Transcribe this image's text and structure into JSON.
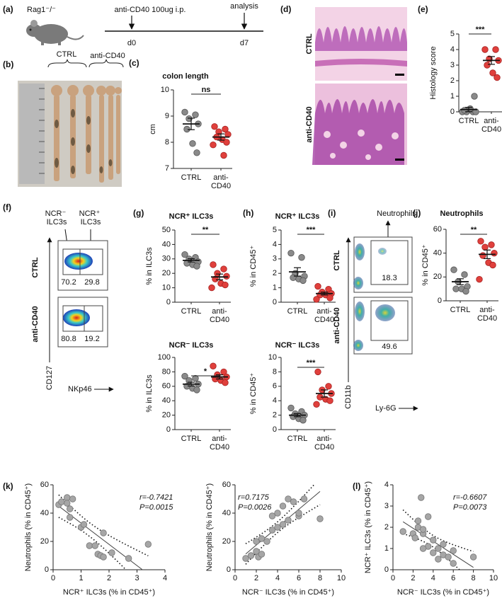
{
  "panel_labels": [
    "(a)",
    "(b)",
    "(c)",
    "(d)",
    "(e)",
    "(f)",
    "(g)",
    "(h)",
    "(i)",
    "(j)",
    "(k)",
    "(l)"
  ],
  "schematic": {
    "mouse": "Rag1⁻/⁻",
    "treatment": "anti-CD40 100ug i.p.",
    "analysis": "analysis",
    "start": "d0",
    "end": "d7"
  },
  "photo": {
    "groups": [
      "CTRL",
      "anti-CD40"
    ]
  },
  "histology": {
    "rows": [
      "CTRL",
      "anti-CD40"
    ]
  },
  "ilc3_flow": {
    "gates": [
      "NCR⁻ ILC3s",
      "NCR⁺ ILC3s"
    ],
    "rows": [
      "CTRL",
      "anti-CD40"
    ],
    "y_axis": "CD127",
    "x_axis": "NKp46",
    "percentages": [
      [
        70.2,
        29.8
      ],
      [
        80.8,
        19.2
      ]
    ]
  },
  "neutrophil_flow": {
    "gate": "Neutrophils",
    "rows": [
      "CTRL",
      "anti-CD40"
    ],
    "y_axis": "CD11b",
    "x_axis": "Ly-6G",
    "percentages": [
      18.3,
      49.6
    ]
  },
  "chart_data": [
    {
      "type": "dot",
      "title": "colon length",
      "y_label": "cm",
      "categories": [
        "CTRL",
        "anti-CD40"
      ],
      "colors": [
        "#8a8a8a",
        "#e0403c"
      ],
      "values": [
        [
          9.15,
          9.05,
          8.9,
          8.7,
          8.5,
          7.95,
          7.6
        ],
        [
          8.6,
          8.5,
          8.4,
          8.3,
          8.2,
          8.1,
          8.0,
          7.9,
          7.5
        ]
      ],
      "means": [
        8.7,
        8.2
      ],
      "errors": [
        0.22,
        0.12
      ],
      "ylim": [
        7,
        10
      ],
      "yticks": [
        7,
        8,
        9,
        10
      ],
      "significance": "ns"
    },
    {
      "type": "dot",
      "y_label": "Histology score",
      "categories": [
        "CTRL",
        "anti-CD40"
      ],
      "colors": [
        "#8a8a8a",
        "#e0403c"
      ],
      "values": [
        [
          0,
          0,
          0,
          0,
          0.1,
          0.2,
          1.0
        ],
        [
          4.0,
          4.0,
          3.4,
          3.3,
          3.0,
          2.5,
          2.2
        ]
      ],
      "means": [
        0.15,
        3.3
      ],
      "errors": [
        0.14,
        0.25
      ],
      "ylim": [
        0,
        5
      ],
      "yticks": [
        0,
        1,
        2,
        3,
        4,
        5
      ],
      "significance": "***"
    },
    {
      "type": "dot",
      "title": "NCR⁺ ILC3s",
      "y_label": "% in ILC3s",
      "categories": [
        "CTRL",
        "anti-CD40"
      ],
      "colors": [
        "#8a8a8a",
        "#e0403c"
      ],
      "values": [
        [
          33,
          31,
          30,
          28,
          27,
          26,
          25
        ],
        [
          26,
          23,
          20,
          18,
          16,
          13,
          12,
          10
        ]
      ],
      "means": [
        29,
        17.5
      ],
      "errors": [
        1.1,
        2
      ],
      "ylim": [
        0,
        50
      ],
      "yticks": [
        0,
        10,
        20,
        30,
        40,
        50
      ],
      "significance": "**"
    },
    {
      "type": "dot",
      "title": "NCR⁻ ILC3s",
      "y_label": "% in ILC3s",
      "categories": [
        "CTRL",
        "anti-CD40"
      ],
      "colors": [
        "#8a8a8a",
        "#e0403c"
      ],
      "values": [
        [
          74,
          71,
          68,
          63,
          60,
          57,
          55
        ],
        [
          88,
          80,
          76,
          73,
          70,
          68,
          65
        ]
      ],
      "means": [
        63,
        73
      ],
      "errors": [
        2.6,
        2.9
      ],
      "ylim": [
        0,
        100
      ],
      "yticks": [
        0,
        20,
        40,
        60,
        80,
        100
      ],
      "significance": "*"
    },
    {
      "type": "dot",
      "title": "NCR⁺ ILC3s",
      "y_label": "% in CD45⁺",
      "categories": [
        "CTRL",
        "anti-CD40"
      ],
      "colors": [
        "#8a8a8a",
        "#e0403c"
      ],
      "values": [
        [
          3.4,
          3.1,
          2.0,
          1.8,
          1.7,
          1.6,
          1.5
        ],
        [
          1.1,
          0.9,
          0.7,
          0.6,
          0.5,
          0.5,
          0.3,
          0.2
        ]
      ],
      "means": [
        2.1,
        0.6
      ],
      "errors": [
        0.29,
        0.1
      ],
      "ylim": [
        0,
        5
      ],
      "yticks": [
        0,
        1,
        2,
        3,
        4,
        5
      ],
      "significance": "***"
    },
    {
      "type": "dot",
      "title": "NCR⁻ ILC3s",
      "y_label": "% in CD45⁺",
      "categories": [
        "CTRL",
        "anti-CD40"
      ],
      "colors": [
        "#8a8a8a",
        "#e0403c"
      ],
      "values": [
        [
          3.0,
          2.5,
          2.2,
          2.0,
          1.8,
          1.5,
          1.3
        ],
        [
          8.0,
          6.0,
          5.5,
          5.0,
          4.5,
          4.2,
          4.0,
          3.5
        ]
      ],
      "means": [
        2.0,
        5.0
      ],
      "errors": [
        0.22,
        0.5
      ],
      "ylim": [
        0,
        10
      ],
      "yticks": [
        0,
        2,
        4,
        6,
        8,
        10
      ],
      "significance": "***"
    },
    {
      "type": "dot",
      "title": "Neutrophils",
      "y_label": "% in CD45⁺",
      "categories": [
        "CTRL",
        "anti-CD40"
      ],
      "colors": [
        "#8a8a8a",
        "#e0403c"
      ],
      "values": [
        [
          26,
          22,
          16,
          12,
          10,
          10,
          8
        ],
        [
          50,
          47,
          45,
          40,
          38,
          32,
          30,
          18
        ]
      ],
      "means": [
        16,
        39
      ],
      "errors": [
        2.5,
        3.6
      ],
      "ylim": [
        0,
        60
      ],
      "yticks": [
        0,
        20,
        40,
        60
      ],
      "significance": "**"
    },
    {
      "type": "scatter",
      "x_label": "NCR⁺ ILC3s (% in CD45⁺)",
      "y_label": "Neutrophils (% in CD45⁺)",
      "color": "#a6a6a6",
      "x": [
        0.2,
        0.3,
        0.5,
        0.5,
        0.6,
        0.7,
        0.6,
        1.0,
        1.1,
        1.3,
        1.5,
        1.6,
        1.7,
        1.8,
        1.8,
        2.1,
        2.7,
        3.4
      ],
      "values": [
        46,
        48,
        51,
        47,
        43,
        50,
        37,
        30,
        32,
        17,
        17,
        11,
        10,
        9,
        26,
        12,
        8,
        18
      ],
      "xlim": [
        0,
        4
      ],
      "xticks": [
        0,
        1,
        2,
        3,
        4
      ],
      "ylim": [
        0,
        60
      ],
      "yticks": [
        0,
        20,
        40,
        60
      ],
      "annotations": [
        "r=-0.7421",
        "P=0.0015"
      ]
    },
    {
      "type": "scatter",
      "x_label": "NCR⁻ ILC3s (% in CD45⁺)",
      "y_label": "Neutrophils (% in CD45⁺)",
      "color": "#a6a6a6",
      "x": [
        1,
        1.5,
        2,
        2.2,
        2.5,
        2,
        2.5,
        3,
        3.5,
        3.5,
        4,
        4,
        4.5,
        4.5,
        5,
        5,
        5.5,
        6,
        6,
        6.5,
        8
      ],
      "values": [
        8,
        10,
        13,
        9,
        11,
        20,
        22,
        20,
        28,
        38,
        40,
        30,
        32,
        45,
        35,
        50,
        48,
        38,
        40,
        50,
        36
      ],
      "xlim": [
        0,
        10
      ],
      "xticks": [
        0,
        2,
        4,
        6,
        8,
        10
      ],
      "ylim": [
        0,
        60
      ],
      "yticks": [
        0,
        20,
        40,
        60
      ],
      "annotations": [
        "r=0.7175",
        "P=0.0026"
      ]
    },
    {
      "type": "scatter",
      "x_label": "NCR⁻ ILC3s (% in CD45⁺)",
      "y_label": "NCR⁺ ILC3s (% in CD45⁺)",
      "color": "#a6a6a6",
      "x": [
        1,
        2,
        2.2,
        2.5,
        2.8,
        3,
        3,
        3.5,
        3.5,
        4,
        4,
        4.5,
        4.5,
        5,
        5,
        5.5,
        6,
        6,
        8,
        2.5,
        3
      ],
      "values": [
        1.8,
        1.7,
        1.5,
        2.0,
        3.4,
        1.7,
        1.9,
        1.1,
        2.5,
        0.8,
        1.4,
        1.0,
        0.5,
        0.7,
        1.2,
        0.6,
        0.3,
        0.9,
        0.6,
        2.3,
        1.0
      ],
      "xlim": [
        0,
        10
      ],
      "xticks": [
        0,
        2,
        4,
        6,
        8,
        10
      ],
      "ylim": [
        0,
        4
      ],
      "yticks": [
        0,
        1,
        2,
        3,
        4
      ],
      "annotations": [
        "r=-0.6607",
        "P=0.0073"
      ]
    }
  ]
}
